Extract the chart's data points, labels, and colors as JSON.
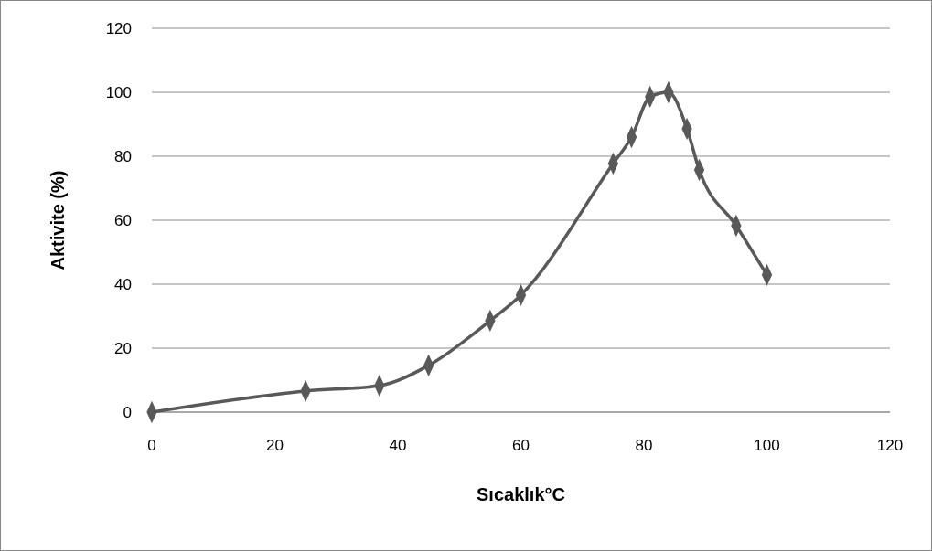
{
  "chart_data": {
    "type": "line",
    "xlabel": "Sıcaklık°C",
    "ylabel": "Aktivite (%)",
    "x": [
      0,
      25,
      37,
      45,
      55,
      60,
      75,
      78,
      81,
      84,
      87,
      89,
      95,
      100
    ],
    "series": [
      {
        "color": "#595959",
        "values": [
          0,
          6.6,
          8.3,
          14.6,
          28.6,
          36.6,
          77.7,
          86,
          98.6,
          100,
          88.6,
          75.7,
          58.3,
          42.9
        ]
      }
    ],
    "xlim": [
      0,
      120
    ],
    "xticks": [
      0,
      20,
      40,
      60,
      80,
      100,
      120
    ],
    "ylim": [
      0,
      120
    ],
    "yticks": [
      0,
      20,
      40,
      60,
      80,
      100,
      120
    ],
    "grid": "y",
    "marker": "diamond",
    "line_style": "solid"
  }
}
